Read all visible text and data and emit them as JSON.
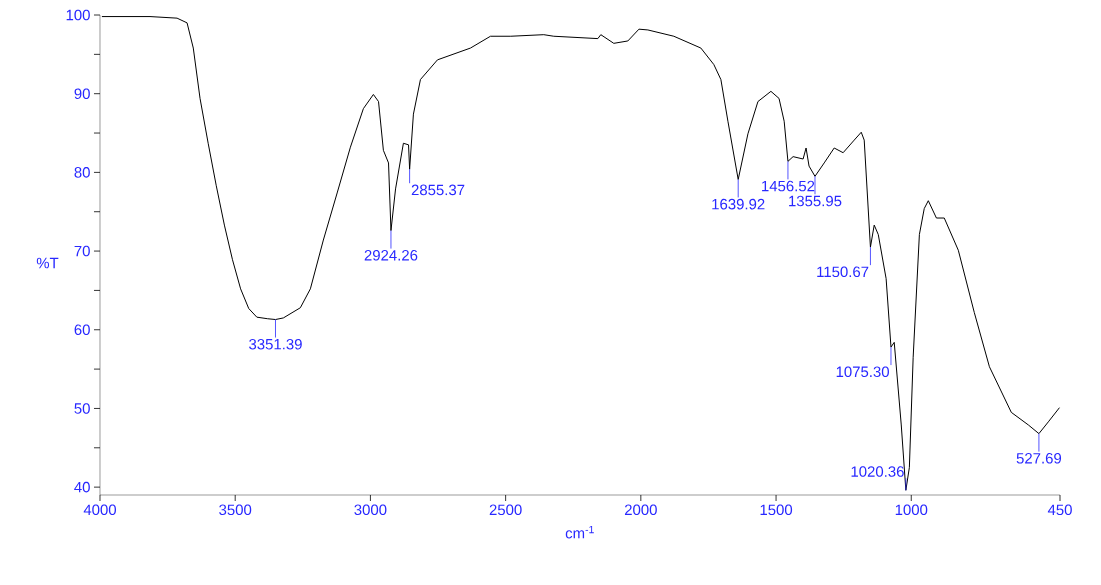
{
  "chart_data": {
    "type": "line",
    "xlabel": "cm$^{-1}$",
    "ylabel": "%T",
    "xlim": [
      4000,
      450
    ],
    "ylim": [
      39,
      100
    ],
    "xticks": [
      4000,
      3500,
      3000,
      2500,
      2000,
      1500,
      1000,
      450
    ],
    "yticks": [
      40,
      50,
      60,
      70,
      80,
      90,
      100
    ],
    "grid": false,
    "marker": "none",
    "line_style": "solid",
    "series": [
      {
        "color": "#000000",
        "x": [
          3993,
          3815,
          3715,
          3678,
          3655,
          3630,
          3600,
          3570,
          3540,
          3510,
          3480,
          3450,
          3420,
          3380,
          3351,
          3322,
          3259,
          3222,
          3174,
          3122,
          3074,
          3026,
          2989,
          2970,
          2952,
          2933,
          2924,
          2907,
          2878,
          2859,
          2855,
          2841,
          2815,
          2752,
          2630,
          2556,
          2481,
          2359,
          2322,
          2159,
          2148,
          2100,
          2048,
          2007,
          1974,
          1878,
          1778,
          1730,
          1704,
          1678,
          1640,
          1604,
          1567,
          1519,
          1489,
          1470,
          1456,
          1437,
          1400,
          1389,
          1378,
          1356,
          1322,
          1285,
          1252,
          1211,
          1185,
          1174,
          1151,
          1137,
          1122,
          1093,
          1075,
          1063,
          1037,
          1020,
          1007,
          993,
          970,
          952,
          937,
          907,
          878,
          826,
          767,
          711,
          630,
          567,
          528,
          493,
          452
        ],
        "values": [
          99.8,
          99.8,
          99.6,
          99.0,
          95.8,
          89.4,
          83.7,
          78.3,
          73.3,
          68.9,
          65.2,
          62.7,
          61.6,
          61.4,
          61.3,
          61.5,
          62.8,
          65.2,
          71.4,
          77.5,
          83.2,
          88.1,
          89.9,
          89.0,
          82.8,
          81.2,
          72.6,
          77.9,
          83.7,
          83.5,
          80.4,
          87.4,
          91.8,
          94.3,
          95.8,
          97.3,
          97.3,
          97.5,
          97.3,
          97.0,
          97.5,
          96.4,
          96.7,
          98.2,
          98.1,
          97.3,
          95.8,
          93.7,
          91.8,
          86.5,
          79.1,
          84.9,
          89.0,
          90.3,
          89.4,
          86.5,
          81.4,
          82.0,
          81.7,
          83.1,
          80.8,
          79.5,
          81.2,
          83.1,
          82.5,
          84.1,
          85.1,
          84.1,
          70.5,
          73.3,
          72.1,
          66.5,
          57.8,
          58.4,
          47.9,
          39.6,
          42.5,
          56.5,
          72.1,
          75.4,
          76.4,
          74.2,
          74.2,
          70.1,
          62.2,
          55.3,
          49.5,
          47.9,
          46.8,
          48.3,
          50.1
        ]
      }
    ],
    "annotations": [
      {
        "text": "3351.39",
        "x": 3351,
        "y": 61.3
      },
      {
        "text": "2924.26",
        "x": 2924,
        "y": 72.6
      },
      {
        "text": "2855.37",
        "x": 2855,
        "y": 80.4
      },
      {
        "text": "1639.92",
        "x": 1640,
        "y": 79.1
      },
      {
        "text": "1456.52",
        "x": 1456,
        "y": 81.4
      },
      {
        "text": "1355.95",
        "x": 1356,
        "y": 79.5
      },
      {
        "text": "1150.67",
        "x": 1151,
        "y": 70.5
      },
      {
        "text": "1075.30",
        "x": 1075,
        "y": 57.8
      },
      {
        "text": "1020.36",
        "x": 1020,
        "y": 39.6
      },
      {
        "text": "527.69",
        "x": 528,
        "y": 46.8
      }
    ]
  }
}
